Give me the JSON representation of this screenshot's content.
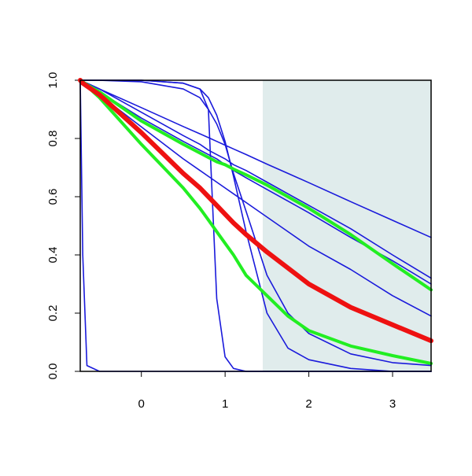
{
  "chart_data": {
    "type": "line",
    "x": [
      -0.73,
      -0.7,
      -0.65,
      -0.5,
      0,
      0.5,
      0.7,
      0.8,
      0.9,
      1,
      1.1,
      1.25,
      1.5,
      1.75,
      2,
      2.5,
      3,
      3.46
    ],
    "series": [
      {
        "color": "#1a1adb",
        "width": 1.6,
        "values": [
          1,
          0.996,
          0.99,
          0.97,
          0.906,
          0.841,
          0.816,
          0.803,
          0.79,
          0.777,
          0.764,
          0.745,
          0.712,
          0.68,
          0.648,
          0.583,
          0.519,
          0.46
        ]
      },
      {
        "color": "#1a1adb",
        "width": 1.6,
        "values": [
          1,
          0.995,
          0.99,
          0.97,
          0.89,
          0.81,
          0.78,
          0.76,
          0.745,
          0.73,
          0.71,
          0.69,
          0.65,
          0.61,
          0.57,
          0.49,
          0.4,
          0.32
        ]
      },
      {
        "color": "#1a1adb",
        "width": 1.6,
        "values": [
          1,
          0.995,
          0.985,
          0.96,
          0.87,
          0.79,
          0.76,
          0.745,
          0.73,
          0.71,
          0.69,
          0.665,
          0.625,
          0.585,
          0.545,
          0.46,
          0.38,
          0.3
        ]
      },
      {
        "color": "#1a1adb",
        "width": 1.6,
        "values": [
          1,
          0.99,
          0.98,
          0.95,
          0.84,
          0.73,
          0.69,
          0.67,
          0.65,
          0.63,
          0.61,
          0.58,
          0.53,
          0.48,
          0.43,
          0.35,
          0.26,
          0.19
        ]
      },
      {
        "color": "#1a1adb",
        "width": 1.6,
        "values": [
          1,
          1,
          1,
          1,
          1,
          0.99,
          0.97,
          0.9,
          0.25,
          0.05,
          0.01,
          0,
          0,
          0,
          0,
          0,
          0,
          0
        ]
      },
      {
        "color": "#1a1adb",
        "width": 1.6,
        "values": [
          1,
          1,
          1,
          1,
          1,
          0.99,
          0.97,
          0.94,
          0.88,
          0.79,
          0.67,
          0.48,
          0.2,
          0.08,
          0.04,
          0.01,
          0,
          0
        ]
      },
      {
        "color": "#1a1adb",
        "width": 1.6,
        "values": [
          1,
          1,
          1,
          1,
          0.995,
          0.97,
          0.94,
          0.9,
          0.85,
          0.78,
          0.68,
          0.55,
          0.33,
          0.2,
          0.13,
          0.06,
          0.03,
          0.02
        ]
      },
      {
        "color": "#1a1adb",
        "width": 1.6,
        "values": [
          1,
          0.4,
          0.02,
          0,
          0,
          0,
          0,
          0,
          0,
          0,
          0,
          0,
          0,
          0,
          0,
          0,
          0,
          0
        ]
      },
      {
        "color": "#22ee22",
        "width": 4,
        "values": [
          1,
          0.995,
          0.985,
          0.96,
          0.86,
          0.78,
          0.75,
          0.735,
          0.72,
          0.71,
          0.695,
          0.675,
          0.64,
          0.6,
          0.56,
          0.47,
          0.37,
          0.28
        ]
      },
      {
        "color": "#22ee22",
        "width": 4,
        "values": [
          1,
          0.99,
          0.98,
          0.94,
          0.78,
          0.63,
          0.56,
          0.52,
          0.48,
          0.44,
          0.4,
          0.33,
          0.26,
          0.19,
          0.14,
          0.087,
          0.054,
          0.027
        ]
      },
      {
        "color": "#ee1111",
        "width": 6,
        "values": [
          1,
          0.99,
          0.98,
          0.95,
          0.82,
          0.68,
          0.63,
          0.6,
          0.57,
          0.54,
          0.51,
          0.47,
          0.41,
          0.355,
          0.3,
          0.22,
          0.16,
          0.105
        ]
      }
    ],
    "xlim": [
      -0.73,
      3.46
    ],
    "ylim": [
      0,
      1
    ],
    "xticks": [
      0,
      1,
      2,
      3
    ],
    "yticks": [
      {
        "value": 0,
        "label": "0.0"
      },
      {
        "value": 0.2,
        "label": "0.2"
      },
      {
        "value": 0.4,
        "label": "0.4"
      },
      {
        "value": 0.6,
        "label": "0.6"
      },
      {
        "value": 0.8,
        "label": "0.8"
      },
      {
        "value": 1,
        "label": "1.0"
      }
    ],
    "highlight": {
      "x": [
        1.45,
        3.46
      ],
      "color": "#e0ecec"
    },
    "grid": false
  }
}
